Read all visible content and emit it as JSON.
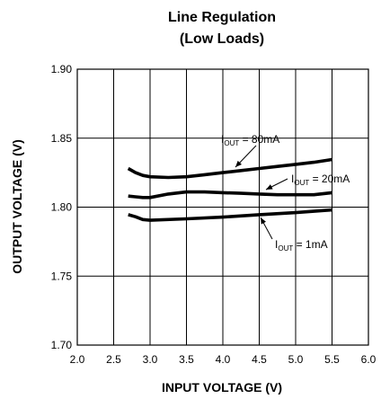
{
  "chart_data": {
    "type": "line",
    "title": "Line Regulation",
    "subtitle": "(Low Loads)",
    "xlabel": "INPUT VOLTAGE (V)",
    "ylabel": "OUTPUT VOLTAGE (V)",
    "xlim": [
      2.0,
      6.0
    ],
    "ylim": [
      1.7,
      1.9
    ],
    "xticks": [
      "2.0",
      "2.5",
      "3.0",
      "3.5",
      "4.0",
      "4.5",
      "5.0",
      "5.5",
      "6.0"
    ],
    "yticks": [
      "1.70",
      "1.75",
      "1.80",
      "1.85",
      "1.90"
    ],
    "grid": true,
    "line_color": "#000000",
    "series": [
      {
        "x": [
          2.7,
          2.8,
          2.9,
          3.0,
          3.25,
          3.5,
          3.75,
          4.0,
          4.25,
          4.5,
          4.75,
          5.0,
          5.25,
          5.5
        ],
        "y": [
          1.828,
          1.825,
          1.823,
          1.822,
          1.8215,
          1.822,
          1.8235,
          1.825,
          1.8265,
          1.828,
          1.8295,
          1.831,
          1.8325,
          1.8345
        ]
      },
      {
        "x": [
          2.7,
          2.8,
          2.9,
          3.0,
          3.25,
          3.5,
          3.75,
          4.0,
          4.25,
          4.5,
          4.75,
          5.0,
          5.25,
          5.5
        ],
        "y": [
          1.808,
          1.8075,
          1.807,
          1.807,
          1.8095,
          1.811,
          1.811,
          1.8105,
          1.81,
          1.8095,
          1.809,
          1.809,
          1.809,
          1.8105
        ]
      },
      {
        "x": [
          2.7,
          2.8,
          2.9,
          3.0,
          3.5,
          4.0,
          4.5,
          5.0,
          5.5
        ],
        "y": [
          1.7945,
          1.793,
          1.791,
          1.7905,
          1.7915,
          1.7928,
          1.7945,
          1.796,
          1.798
        ]
      }
    ],
    "annotations": [
      {
        "main": "I",
        "sub": "OUT",
        "rest": " = 80mA"
      },
      {
        "main": "I",
        "sub": "OUT",
        "rest": " = 20mA"
      },
      {
        "main": "I",
        "sub": "OUT",
        "rest": " = 1mA"
      }
    ]
  }
}
